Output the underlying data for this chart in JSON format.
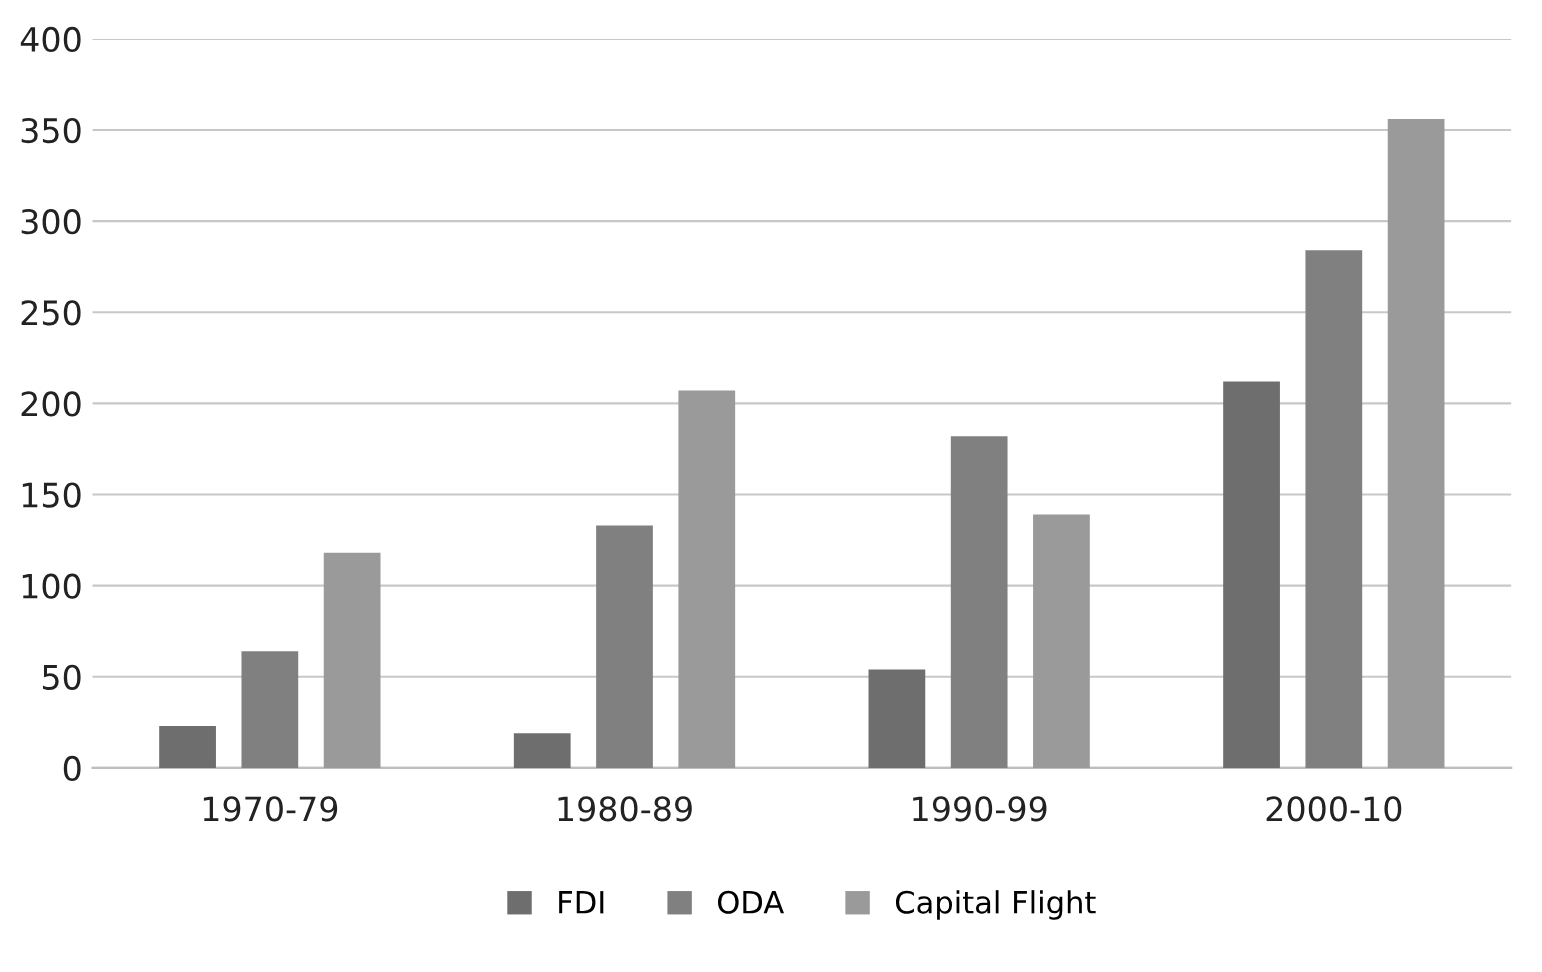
{
  "chart_data": {
    "type": "bar",
    "categories": [
      "1970-79",
      "1980-89",
      "1990-99",
      "2000-10"
    ],
    "series": [
      {
        "name": "FDI",
        "color": "#6e6e6e",
        "values": [
          23,
          19,
          54,
          212
        ]
      },
      {
        "name": "ODA",
        "color": "#808080",
        "values": [
          64,
          133,
          182,
          284
        ]
      },
      {
        "name": "Capital Flight",
        "color": "#9a9a9a",
        "values": [
          118,
          207,
          139,
          356
        ]
      }
    ],
    "ylim": [
      0,
      400
    ],
    "yticks": [
      0,
      50,
      100,
      150,
      200,
      250,
      300,
      350,
      400
    ],
    "grid": "y",
    "legend": "bottom"
  }
}
